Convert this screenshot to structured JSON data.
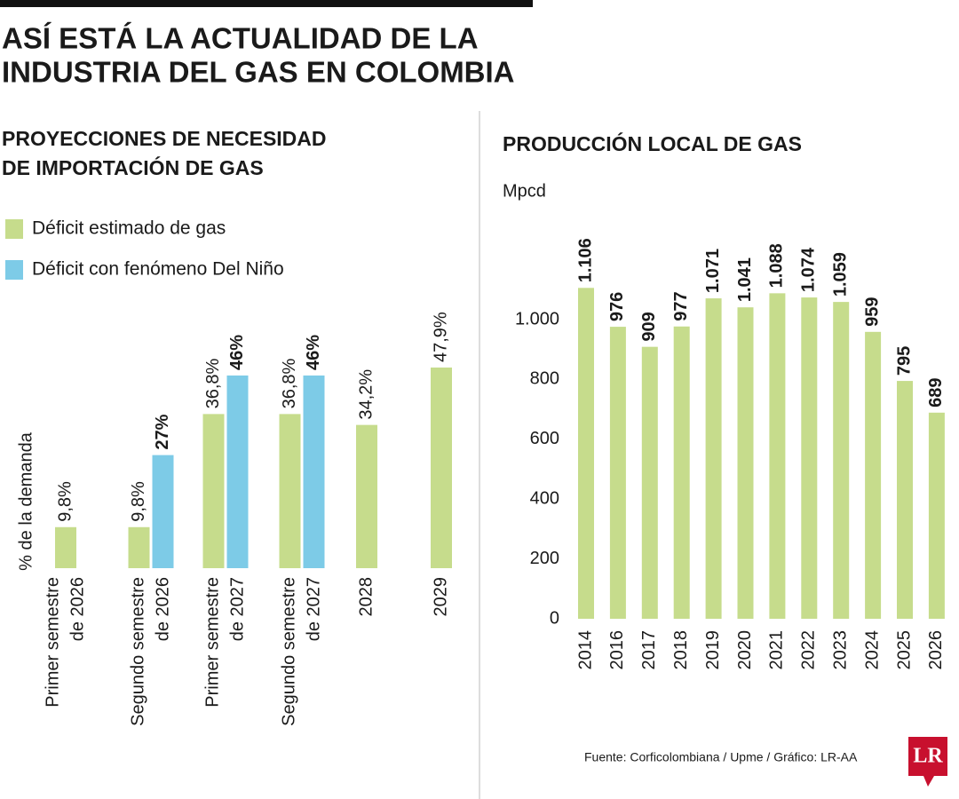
{
  "header": {
    "title": [
      "ASÍ ESTÁ LA ACTUALIDAD DE LA",
      "INDUSTRIA DEL GAS EN COLOMBIA"
    ]
  },
  "chart_data": [
    {
      "type": "bar",
      "title": [
        "PROYECCIONES DE NECESIDAD",
        "DE IMPORTACIÓN DE GAS"
      ],
      "y_label": "% de la demanda",
      "legend": "top-left",
      "categories": [
        [
          "Primer semestre",
          "de 2026"
        ],
        [
          "Segundo semestre",
          "de 2026"
        ],
        [
          "Primer semestre",
          "de 2027"
        ],
        [
          "Segundo semestre",
          "de 2027"
        ],
        [
          "2028"
        ],
        [
          "2029"
        ]
      ],
      "series": [
        {
          "name": "Déficit estimado de gas",
          "color": "#c6dc8c",
          "values": [
            9.8,
            9.8,
            36.8,
            36.8,
            34.2,
            47.9
          ],
          "value_labels": [
            "9,8%",
            "9,8%",
            "36,8%",
            "36,8%",
            "34,2%",
            "47,9%"
          ]
        },
        {
          "name": "Déficit con fenómeno Del Niño",
          "color": "#7dcbe7",
          "values": [
            null,
            27,
            46,
            46,
            null,
            null
          ],
          "value_labels": [
            null,
            "27%",
            "46%",
            "46%",
            null,
            null
          ]
        }
      ]
    },
    {
      "type": "bar",
      "title": [
        "PRODUCCIÓN LOCAL DE GAS"
      ],
      "y_label": "Mpcd",
      "categories": [
        "2014",
        "2016",
        "2017",
        "2018",
        "2019",
        "2020",
        "2021",
        "2022",
        "2023",
        "2024",
        "2025",
        "2026"
      ],
      "values": [
        1106,
        976,
        909,
        977,
        1071,
        1041,
        1088,
        1074,
        1059,
        959,
        795,
        689
      ],
      "value_labels": [
        "1.106",
        "976",
        "909",
        "977",
        "1.071",
        "1.041",
        "1.088",
        "1.074",
        "1.059",
        "959",
        "795",
        "689"
      ],
      "color": "#c6dc8c",
      "ylim": [
        0,
        1000
      ],
      "yticks": [
        {
          "value": 1000,
          "label": "1.000"
        },
        800,
        600,
        400,
        200,
        0
      ]
    }
  ],
  "source": "Fuente: Corficolombiana / Upme / Gráfico: LR-AA",
  "logo": "LR"
}
